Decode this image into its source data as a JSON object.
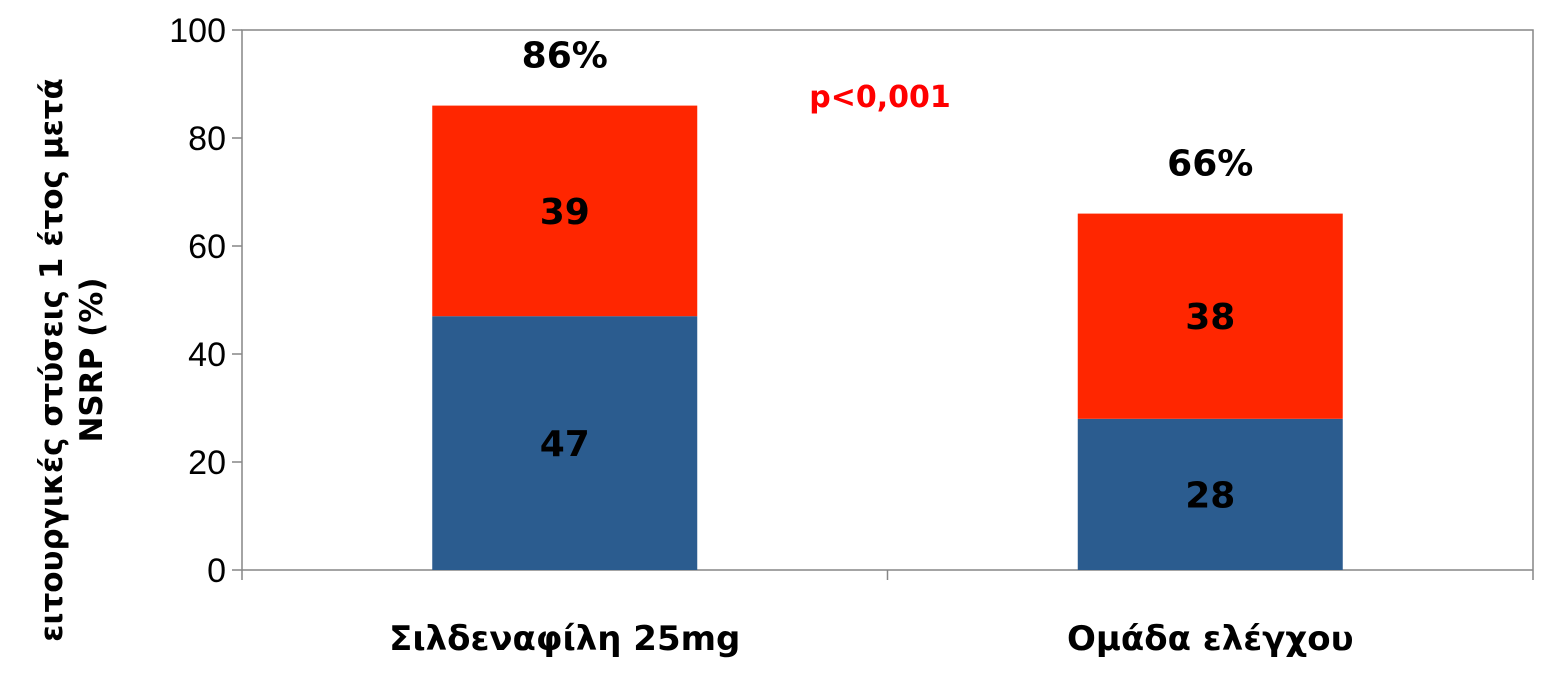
{
  "chart_data": {
    "type": "bar",
    "stacked": true,
    "categories": [
      "Σιλδεναφίλη 25mg",
      "Ομάδα ελέγχου"
    ],
    "series": [
      {
        "values": [
          47,
          28
        ],
        "color": "#2B5C8F"
      },
      {
        "values": [
          39,
          38
        ],
        "color": "#FF2600"
      }
    ],
    "totals": [
      "86%",
      "66%"
    ],
    "annotation": {
      "text": "p<0,001",
      "color": "#FF0000"
    },
    "ylabel_lines": [
      "ειτουργικές στύσεις 1 έτος μετά",
      "NSRP (%)"
    ],
    "ylim": [
      0,
      100
    ],
    "yticks": [
      0,
      20,
      40,
      60,
      80,
      100
    ],
    "grid": false,
    "legend": "none"
  }
}
